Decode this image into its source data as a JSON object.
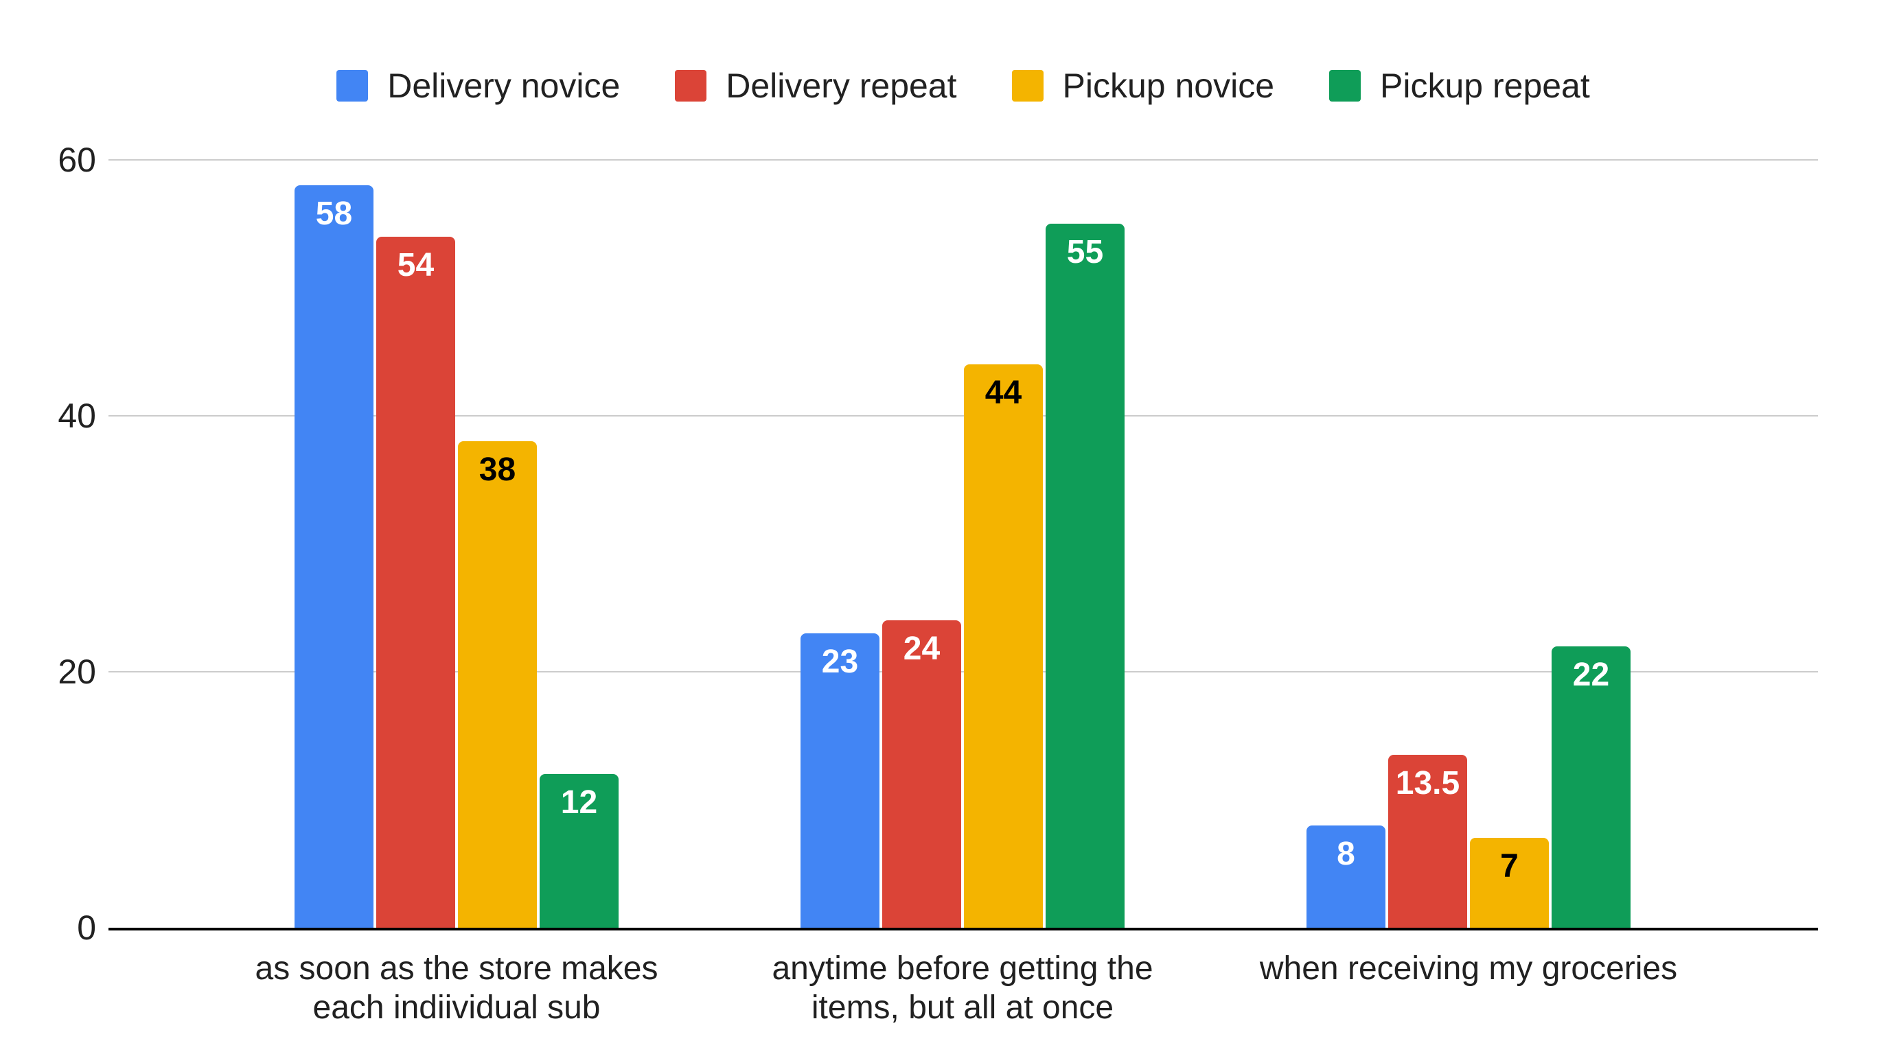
{
  "chart_data": {
    "type": "bar",
    "title": "",
    "legend_position": "top",
    "background": "#ffffff",
    "grid": true,
    "gridline_color": "#cccccc",
    "axis_color": "#000000",
    "text_color": "#212121",
    "ylim": [
      0,
      60
    ],
    "yticks": [
      0,
      20,
      40,
      60
    ],
    "categories": [
      {
        "lines": [
          "as soon as the store makes",
          "each indiividual sub"
        ]
      },
      {
        "lines": [
          "anytime before getting the",
          "items, but all at once"
        ]
      },
      {
        "lines": [
          "when receiving my groceries"
        ]
      }
    ],
    "series": [
      {
        "name": "Delivery novice",
        "color": "#4285f4",
        "label_color": "#ffffff",
        "values": [
          58,
          23,
          8
        ]
      },
      {
        "name": "Delivery repeat",
        "color": "#db4437",
        "label_color": "#ffffff",
        "values": [
          54,
          24,
          13.5
        ]
      },
      {
        "name": "Pickup novice",
        "color": "#f4b400",
        "label_color": "#000000",
        "values": [
          38,
          44,
          7
        ]
      },
      {
        "name": "Pickup repeat",
        "color": "#0f9d58",
        "label_color": "#ffffff",
        "values": [
          12,
          55,
          22
        ]
      }
    ]
  }
}
